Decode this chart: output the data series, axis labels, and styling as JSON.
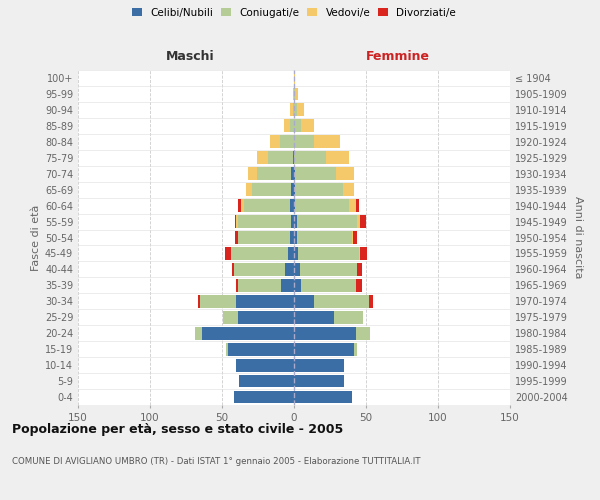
{
  "age_groups": [
    "0-4",
    "5-9",
    "10-14",
    "15-19",
    "20-24",
    "25-29",
    "30-34",
    "35-39",
    "40-44",
    "45-49",
    "50-54",
    "55-59",
    "60-64",
    "65-69",
    "70-74",
    "75-79",
    "80-84",
    "85-89",
    "90-94",
    "95-99",
    "100+"
  ],
  "birth_years": [
    "2000-2004",
    "1995-1999",
    "1990-1994",
    "1985-1989",
    "1980-1984",
    "1975-1979",
    "1970-1974",
    "1965-1969",
    "1960-1964",
    "1955-1959",
    "1950-1954",
    "1945-1949",
    "1940-1944",
    "1935-1939",
    "1930-1934",
    "1925-1929",
    "1920-1924",
    "1915-1919",
    "1910-1914",
    "1905-1909",
    "≤ 1904"
  ],
  "colors": {
    "celibe": "#3a6ea5",
    "coniugato": "#b5cc96",
    "vedovo": "#f5c96a",
    "divorziato": "#d9251d"
  },
  "males": {
    "celibe": [
      42,
      38,
      40,
      46,
      64,
      39,
      40,
      9,
      6,
      4,
      3,
      2,
      3,
      2,
      2,
      1,
      0,
      0,
      0,
      0,
      0
    ],
    "coniugato": [
      0,
      0,
      0,
      1,
      5,
      10,
      25,
      30,
      36,
      40,
      36,
      37,
      32,
      27,
      24,
      17,
      10,
      3,
      1,
      0,
      0
    ],
    "vedovo": [
      0,
      0,
      0,
      0,
      0,
      0,
      0,
      0,
      0,
      0,
      0,
      1,
      2,
      4,
      6,
      8,
      7,
      4,
      2,
      1,
      0
    ],
    "divorziato": [
      0,
      0,
      0,
      0,
      0,
      0,
      2,
      1,
      1,
      4,
      2,
      1,
      2,
      0,
      0,
      0,
      0,
      0,
      0,
      0,
      0
    ]
  },
  "females": {
    "nubile": [
      40,
      35,
      35,
      42,
      43,
      28,
      14,
      5,
      4,
      3,
      2,
      2,
      1,
      1,
      1,
      0,
      0,
      0,
      0,
      0,
      0
    ],
    "coniugata": [
      0,
      0,
      0,
      2,
      10,
      20,
      38,
      38,
      40,
      42,
      38,
      42,
      37,
      33,
      28,
      22,
      14,
      5,
      2,
      1,
      0
    ],
    "vedova": [
      0,
      0,
      0,
      0,
      0,
      0,
      0,
      0,
      0,
      1,
      1,
      2,
      5,
      8,
      13,
      16,
      18,
      9,
      5,
      2,
      1
    ],
    "divorziata": [
      0,
      0,
      0,
      0,
      0,
      0,
      3,
      4,
      3,
      5,
      3,
      4,
      2,
      0,
      0,
      0,
      0,
      0,
      0,
      0,
      0
    ]
  },
  "xlim": 150,
  "title": "Popolazione per età, sesso e stato civile - 2005",
  "subtitle": "COMUNE DI AVIGLIANO UMBRO (TR) - Dati ISTAT 1° gennaio 2005 - Elaborazione TUTTITALIA.IT",
  "ylabel_left": "Fasce di età",
  "ylabel_right": "Anni di nascita",
  "label_maschi": "Maschi",
  "label_femmine": "Femmine",
  "legend_labels": [
    "Celibi/Nubili",
    "Coniugati/e",
    "Vedovi/e",
    "Divorziati/e"
  ],
  "bg_color": "#efefef",
  "plot_bg_color": "#ffffff",
  "xticks": [
    150,
    100,
    50,
    0,
    50,
    100,
    150
  ]
}
